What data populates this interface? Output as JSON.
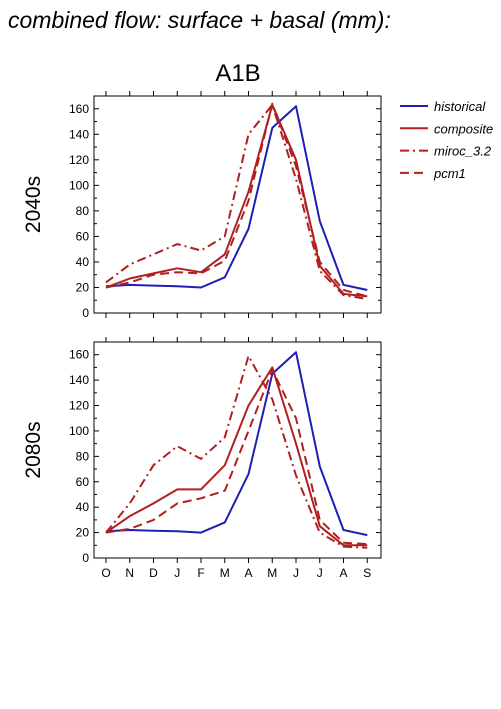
{
  "figure_title": "combined flow: surface + basal (mm):",
  "scenario": "A1B",
  "colors": {
    "historical": "#1f1fb4",
    "model": "#b21f1f"
  },
  "legend": [
    {
      "label": "historical",
      "style": "solid",
      "color": "#1f1fb4"
    },
    {
      "label": "composite",
      "style": "solid",
      "color": "#b21f1f"
    },
    {
      "label": "miroc_3.2",
      "style": "dashdot",
      "color": "#b21f1f"
    },
    {
      "label": "pcm1",
      "style": "dash",
      "color": "#b21f1f"
    }
  ],
  "chart_data": [
    {
      "type": "line",
      "title": "2040s",
      "categories": [
        "O",
        "N",
        "D",
        "J",
        "F",
        "M",
        "A",
        "M",
        "J",
        "J",
        "A",
        "S"
      ],
      "ylim": [
        0,
        170
      ],
      "yticks": [
        0,
        20,
        40,
        60,
        80,
        100,
        120,
        140,
        160
      ],
      "series": [
        {
          "name": "historical",
          "style": "solid",
          "color": "#1f1fb4",
          "values": [
            21,
            22,
            21.5,
            21,
            20,
            28,
            66,
            145,
            162,
            72,
            22,
            18
          ]
        },
        {
          "name": "composite",
          "style": "solid",
          "color": "#b21f1f",
          "values": [
            20,
            27,
            31,
            35,
            32,
            46,
            95,
            163,
            120,
            37,
            15,
            13
          ]
        },
        {
          "name": "miroc_3.2",
          "style": "dashdot",
          "color": "#b21f1f",
          "values": [
            24,
            38,
            46,
            54,
            49,
            60,
            140,
            163,
            105,
            33,
            14,
            11
          ]
        },
        {
          "name": "pcm1",
          "style": "dash",
          "color": "#b21f1f",
          "values": [
            20,
            24,
            30,
            32,
            31,
            41,
            88,
            164,
            115,
            40,
            18,
            13
          ]
        }
      ]
    },
    {
      "type": "line",
      "title": "2080s",
      "categories": [
        "O",
        "N",
        "D",
        "J",
        "F",
        "M",
        "A",
        "M",
        "J",
        "J",
        "A",
        "S"
      ],
      "ylim": [
        0,
        170
      ],
      "yticks": [
        0,
        20,
        40,
        60,
        80,
        100,
        120,
        140,
        160
      ],
      "series": [
        {
          "name": "historical",
          "style": "solid",
          "color": "#1f1fb4",
          "values": [
            21,
            22,
            21.5,
            21,
            20,
            28,
            66,
            145,
            162,
            72,
            22,
            18
          ]
        },
        {
          "name": "composite",
          "style": "solid",
          "color": "#b21f1f",
          "values": [
            20,
            33,
            43,
            54,
            54,
            73,
            120,
            150,
            90,
            25,
            10,
            10
          ]
        },
        {
          "name": "miroc_3.2",
          "style": "dashdot",
          "color": "#b21f1f",
          "values": [
            20,
            43,
            73,
            88,
            78,
            95,
            159,
            125,
            65,
            20,
            9,
            8
          ]
        },
        {
          "name": "pcm1",
          "style": "dash",
          "color": "#b21f1f",
          "values": [
            20,
            23,
            30,
            43,
            47,
            53,
            100,
            148,
            110,
            30,
            12,
            11
          ]
        }
      ]
    }
  ]
}
